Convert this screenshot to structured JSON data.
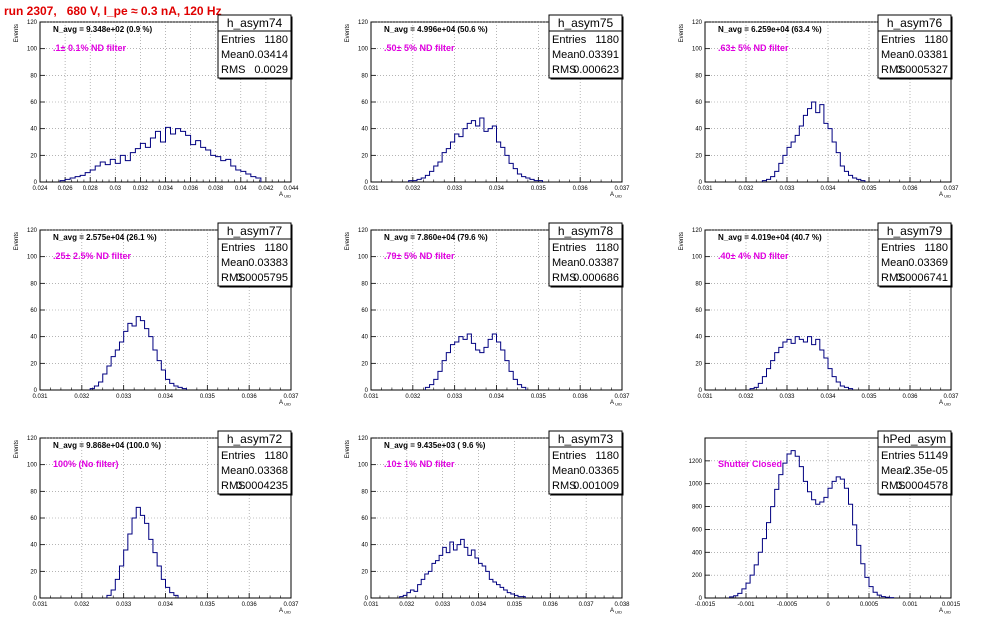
{
  "title": "run 2307,   680 V, I_pe ≈ 0.3 nA, 120 Hz",
  "colors": {
    "title": "#e00000",
    "filter_label": "#e000e0",
    "histogram": "#000080",
    "grid": "#888888"
  },
  "chart_data": [
    {
      "type": "histogram",
      "name": "h_asym74",
      "navg": "N_avg = 9.348e+02 (0.9 %)",
      "filter": ".1± 0.1% ND filter",
      "stats": {
        "Entries": "1180",
        "Mean": "0.03414",
        "RMS": "0.0029"
      },
      "xlabel": "A_UID",
      "ylabel": "Events",
      "xlim": [
        0.024,
        0.044
      ],
      "ylim": [
        0,
        120
      ],
      "xticks": [
        "0.024",
        "0.026",
        "0.028",
        "0.03",
        "0.032",
        "0.034",
        "0.036",
        "0.038",
        "0.04",
        "0.042",
        "0.044"
      ],
      "yticks": [
        "20",
        "40",
        "60",
        "80",
        "100",
        "120"
      ],
      "x_start": 0.0256,
      "bin_width": 0.0004,
      "counts": [
        1,
        2,
        3,
        4,
        5,
        7,
        9,
        12,
        15,
        13,
        17,
        14,
        20,
        16,
        22,
        25,
        29,
        26,
        33,
        38,
        30,
        41,
        36,
        40,
        38,
        35,
        28,
        31,
        26,
        24,
        20,
        19,
        16,
        17,
        12,
        9,
        8,
        6,
        4,
        3
      ]
    },
    {
      "type": "histogram",
      "name": "h_asym75",
      "navg": "N_avg = 4.996e+04 (50.6 %)",
      "filter": ".50± 5% ND filter",
      "stats": {
        "Entries": "1180",
        "Mean": "0.03391",
        "RMS": "0.000623"
      },
      "xlabel": "A_UID",
      "ylabel": "Events",
      "xlim": [
        0.031,
        0.037
      ],
      "ylim": [
        0,
        120
      ],
      "xticks": [
        "0.031",
        "0.032",
        "0.033",
        "0.034",
        "0.035",
        "0.036",
        "0.037"
      ],
      "yticks": [
        "20",
        "40",
        "60",
        "80",
        "100",
        "120"
      ],
      "x_start": 0.0319,
      "bin_width": 0.0001,
      "counts": [
        1,
        1,
        2,
        3,
        5,
        8,
        12,
        15,
        22,
        25,
        30,
        36,
        34,
        40,
        44,
        46,
        42,
        48,
        38,
        40,
        42,
        30,
        26,
        20,
        14,
        10,
        6,
        4,
        3,
        2,
        1,
        1
      ]
    },
    {
      "type": "histogram",
      "name": "h_asym76",
      "navg": "N_avg = 6.259e+04 (63.4 %)",
      "filter": ".63± 5% ND filter",
      "stats": {
        "Entries": "1180",
        "Mean": "0.03381",
        "RMS": "0.0005327"
      },
      "xlabel": "A_UID",
      "ylabel": "Events",
      "xlim": [
        0.031,
        0.037
      ],
      "ylim": [
        0,
        120
      ],
      "xticks": [
        "0.031",
        "0.032",
        "0.033",
        "0.034",
        "0.035",
        "0.036",
        "0.037"
      ],
      "yticks": [
        "20",
        "40",
        "60",
        "80",
        "100",
        "120"
      ],
      "x_start": 0.0324,
      "bin_width": 0.0001,
      "counts": [
        1,
        2,
        4,
        8,
        14,
        20,
        26,
        30,
        35,
        42,
        50,
        55,
        60,
        52,
        58,
        44,
        40,
        30,
        22,
        12,
        8,
        5,
        3,
        2,
        1
      ]
    },
    {
      "type": "histogram",
      "name": "h_asym77",
      "navg": "N_avg = 2.575e+04 (26.1 %)",
      "filter": ".25± 2.5% ND filter",
      "stats": {
        "Entries": "1180",
        "Mean": "0.03383",
        "RMS": "0.0005795"
      },
      "xlabel": "A_UID",
      "ylabel": "Events",
      "xlim": [
        0.031,
        0.037
      ],
      "ylim": [
        0,
        120
      ],
      "xticks": [
        "0.031",
        "0.032",
        "0.033",
        "0.034",
        "0.035",
        "0.036",
        "0.037"
      ],
      "yticks": [
        "20",
        "40",
        "60",
        "80",
        "100",
        "120"
      ],
      "x_start": 0.0322,
      "bin_width": 0.0001,
      "counts": [
        1,
        3,
        6,
        12,
        18,
        25,
        30,
        36,
        44,
        50,
        48,
        55,
        52,
        46,
        40,
        30,
        22,
        15,
        8,
        5,
        3,
        2,
        1
      ]
    },
    {
      "type": "histogram",
      "name": "h_asym78",
      "navg": "N_avg = 7.860e+04 (79.6 %)",
      "filter": ".79± 5% ND filter",
      "stats": {
        "Entries": "1180",
        "Mean": "0.03387",
        "RMS": "0.000686"
      },
      "xlabel": "A_UID",
      "ylabel": "Events",
      "xlim": [
        0.031,
        0.037
      ],
      "ylim": [
        0,
        120
      ],
      "xticks": [
        "0.031",
        "0.032",
        "0.033",
        "0.034",
        "0.035",
        "0.036",
        "0.037"
      ],
      "yticks": [
        "20",
        "40",
        "60",
        "80",
        "100",
        "120"
      ],
      "x_start": 0.0323,
      "bin_width": 0.0001,
      "counts": [
        2,
        4,
        8,
        14,
        22,
        28,
        34,
        36,
        40,
        38,
        42,
        35,
        30,
        28,
        32,
        38,
        42,
        36,
        30,
        22,
        14,
        8,
        4,
        2
      ]
    },
    {
      "type": "histogram",
      "name": "h_asym79",
      "navg": "N_avg = 4.019e+04 (40.7 %)",
      "filter": ".40± 4% ND filter",
      "stats": {
        "Entries": "1180",
        "Mean": "0.03369",
        "RMS": "0.0006741"
      },
      "xlabel": "A_UID",
      "ylabel": "Events",
      "xlim": [
        0.031,
        0.037
      ],
      "ylim": [
        0,
        120
      ],
      "xticks": [
        "0.031",
        "0.032",
        "0.033",
        "0.034",
        "0.035",
        "0.036",
        "0.037"
      ],
      "yticks": [
        "20",
        "40",
        "60",
        "80",
        "100",
        "120"
      ],
      "x_start": 0.0321,
      "bin_width": 0.0001,
      "counts": [
        1,
        2,
        5,
        10,
        16,
        22,
        28,
        32,
        36,
        38,
        35,
        40,
        38,
        36,
        40,
        34,
        38,
        30,
        24,
        16,
        10,
        6,
        3,
        2,
        1
      ]
    },
    {
      "type": "histogram",
      "name": "h_asym72",
      "navg": "N_avg = 9.868e+04 (100.0 %)",
      "filter": "100% (No filter)",
      "stats": {
        "Entries": "1180",
        "Mean": "0.03368",
        "RMS": "0.0004235"
      },
      "xlabel": "A_UID",
      "ylabel": "Events",
      "xlim": [
        0.031,
        0.037
      ],
      "ylim": [
        0,
        120
      ],
      "xticks": [
        "0.031",
        "0.032",
        "0.033",
        "0.034",
        "0.035",
        "0.036",
        "0.037"
      ],
      "yticks": [
        "20",
        "40",
        "60",
        "80",
        "100",
        "120"
      ],
      "x_start": 0.0326,
      "bin_width": 0.0001,
      "counts": [
        2,
        6,
        14,
        24,
        36,
        48,
        60,
        68,
        62,
        56,
        44,
        34,
        24,
        14,
        8,
        4,
        2
      ]
    },
    {
      "type": "histogram",
      "name": "h_asym73",
      "navg": "N_avg = 9.435e+03 ( 9.6 %)",
      "filter": ".10± 1% ND filter",
      "stats": {
        "Entries": "1180",
        "Mean": "0.03365",
        "RMS": "0.001009"
      },
      "xlabel": "A_UID",
      "ylabel": "Events",
      "xlim": [
        0.031,
        0.038
      ],
      "ylim": [
        0,
        120
      ],
      "xticks": [
        "0.031",
        "0.032",
        "0.033",
        "0.034",
        "0.035",
        "0.036",
        "0.037",
        "0.038"
      ],
      "yticks": [
        "20",
        "40",
        "60",
        "80",
        "100",
        "120"
      ],
      "x_start": 0.0318,
      "bin_width": 0.0001,
      "counts": [
        1,
        2,
        4,
        6,
        5,
        10,
        14,
        18,
        20,
        26,
        28,
        32,
        38,
        34,
        42,
        36,
        40,
        44,
        38,
        32,
        36,
        30,
        26,
        24,
        20,
        14,
        12,
        10,
        8,
        6,
        4,
        3,
        2,
        1,
        1
      ]
    },
    {
      "type": "histogram",
      "name": "hPed_asym",
      "navg": "",
      "filter": "Shutter Closed",
      "stats": {
        "Entries": "51149",
        "Mean": "2.35e-05",
        "RMS": "0.0004578"
      },
      "xlabel": "A_UID",
      "ylabel": "",
      "xlim": [
        -0.0015,
        0.0015
      ],
      "ylim": [
        0,
        1400
      ],
      "xticks": [
        "-0.0015",
        "-0.001",
        "-0.0005",
        "0",
        "0.0005",
        "0.001",
        "0.0015"
      ],
      "yticks": [
        "200",
        "400",
        "600",
        "800",
        "1000",
        "1200"
      ],
      "x_start": -0.0012,
      "bin_width": 5e-05,
      "counts": [
        10,
        20,
        40,
        80,
        130,
        200,
        290,
        400,
        520,
        660,
        800,
        950,
        1080,
        1180,
        1260,
        1290,
        1240,
        1150,
        1020,
        930,
        860,
        820,
        840,
        880,
        960,
        1020,
        1060,
        1040,
        960,
        820,
        640,
        460,
        300,
        180,
        100,
        50,
        25,
        12,
        6,
        3
      ]
    }
  ]
}
